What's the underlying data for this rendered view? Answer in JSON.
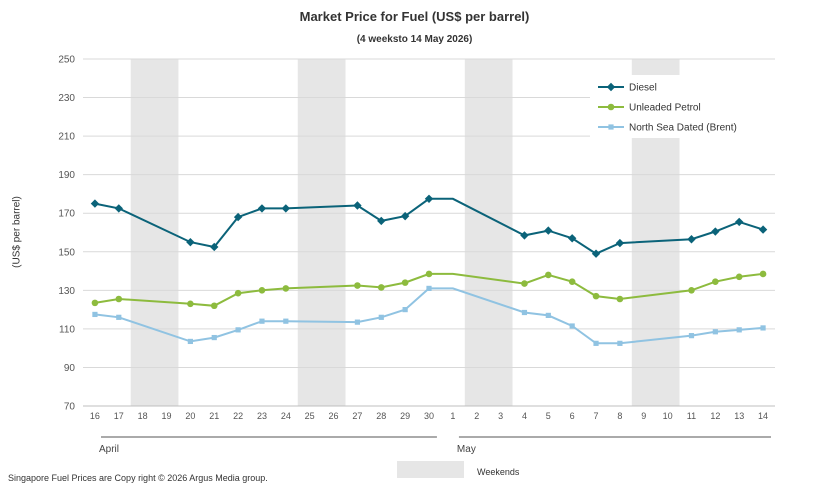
{
  "chart_data": {
    "type": "line",
    "title": "Market Price for Fuel (US$ per barrel)",
    "subtitle": "(4 weeksto 14 May 2026)",
    "ylabel": "(US$ per barrel)",
    "ylim": [
      70,
      250
    ],
    "yticks": [
      70,
      90,
      110,
      130,
      150,
      170,
      190,
      210,
      230,
      250
    ],
    "grid": true,
    "legend_position": "top-right",
    "x": [
      "16",
      "17",
      "18",
      "19",
      "20",
      "21",
      "22",
      "23",
      "24",
      "25",
      "26",
      "27",
      "28",
      "29",
      "30",
      "1",
      "2",
      "3",
      "4",
      "5",
      "6",
      "7",
      "8",
      "9",
      "10",
      "11",
      "12",
      "13",
      "14"
    ],
    "months": [
      {
        "label": "April",
        "from": "16",
        "to": "30"
      },
      {
        "label": "May",
        "from": "1",
        "to": "14"
      }
    ],
    "weekends": [
      [
        "18",
        "19"
      ],
      [
        "25",
        "26"
      ],
      [
        "2",
        "3"
      ],
      [
        "9",
        "10"
      ]
    ],
    "series": [
      {
        "name": "Diesel",
        "color": "#0b6379",
        "marker": "diamond",
        "values": [
          175,
          172.5,
          null,
          null,
          155,
          152.5,
          168,
          172.5,
          172.5,
          null,
          null,
          174,
          166,
          168.5,
          177.5,
          177.5,
          null,
          null,
          158.5,
          161,
          157,
          149,
          154.5,
          null,
          null,
          156.5,
          160.5,
          165.5,
          161.5
        ]
      },
      {
        "name": "Unleaded Petrol",
        "color": "#8dbb3e",
        "marker": "circle",
        "values": [
          123.5,
          125.5,
          null,
          null,
          123,
          122,
          128.5,
          130,
          131,
          null,
          null,
          132.5,
          131.5,
          134,
          138.5,
          138.5,
          null,
          null,
          133.5,
          138,
          134.5,
          127,
          125.5,
          null,
          null,
          130,
          134.5,
          137,
          138.5
        ]
      },
      {
        "name": "North Sea Dated (Brent)",
        "color": "#90c3e2",
        "marker": "square",
        "values": [
          117.5,
          116,
          null,
          null,
          103.5,
          105.5,
          109.5,
          114,
          114,
          null,
          null,
          113.5,
          116,
          120,
          131,
          131,
          null,
          null,
          118.5,
          117,
          111.5,
          102.5,
          102.5,
          null,
          null,
          106.5,
          108.5,
          109.5,
          110.5
        ]
      }
    ]
  },
  "footer": "Singapore  Fuel Prices are  Copy right © 2026 Argus Media  group.",
  "weekend_legend": "Weekends"
}
